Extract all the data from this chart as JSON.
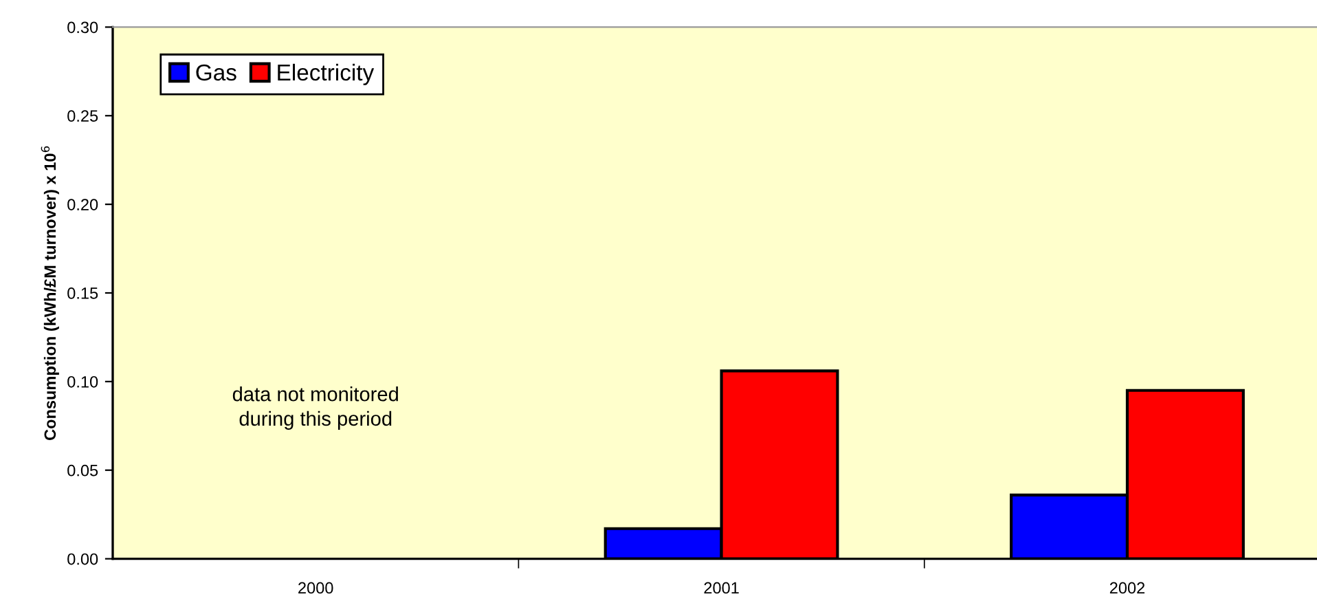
{
  "chart_data": {
    "type": "bar",
    "ylabel": "Consumption (kWh/£M turnover) x 10$^{6}$",
    "categories": [
      "2000",
      "2001",
      "2002"
    ],
    "series": [
      {
        "name": "Gas",
        "color": "#0000ff",
        "values": [
          null,
          0.017,
          0.036
        ]
      },
      {
        "name": "Electricity",
        "color": "#ff0000",
        "values": [
          null,
          0.106,
          0.095
        ]
      }
    ],
    "ylim": [
      0,
      0.3
    ],
    "yticks": [
      {
        "value": 0,
        "label": "0.00"
      },
      {
        "value": 0.05,
        "label": "0.05"
      },
      {
        "value": 0.1,
        "label": "0.10"
      },
      {
        "value": 0.15,
        "label": "0.15"
      },
      {
        "value": 0.2,
        "label": "0.20"
      },
      {
        "value": 0.25,
        "label": "0.25"
      },
      {
        "value": 0.3,
        "label": "0.30"
      }
    ],
    "annotations": [
      "data not monitored\nduring this period"
    ],
    "legend": "top left",
    "grid": false
  }
}
